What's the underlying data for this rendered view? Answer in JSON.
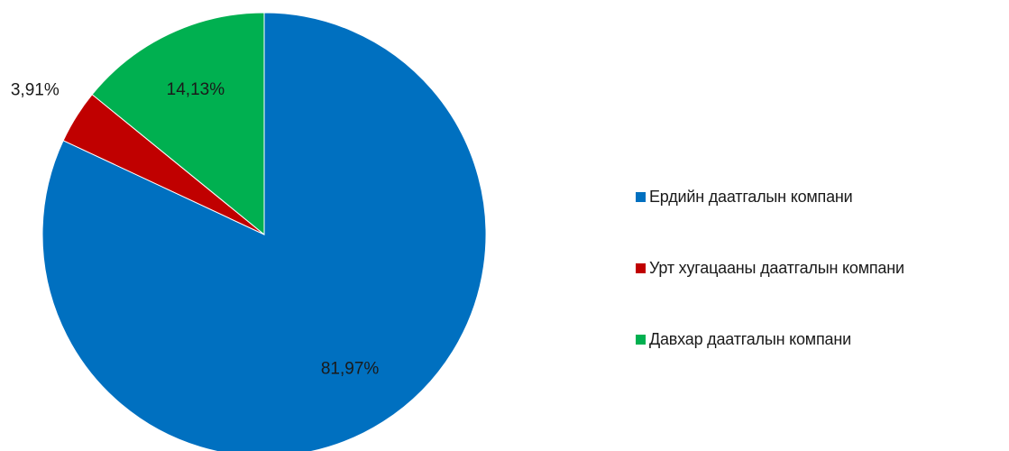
{
  "chart_data": {
    "type": "pie",
    "title": "",
    "categories": [
      "Ердийн даатгалын компани",
      "Урт хугацааны даатгалын компани",
      "Давхар даатгалын компани"
    ],
    "values": [
      81.97,
      3.91,
      14.13
    ],
    "labels": [
      "81,97%",
      "3,91%",
      "14,13%"
    ],
    "colors": [
      "#0070C0",
      "#C00000",
      "#00B050"
    ],
    "start_angle": "12 o'clock",
    "direction": "clockwise",
    "legend_position": "right"
  }
}
